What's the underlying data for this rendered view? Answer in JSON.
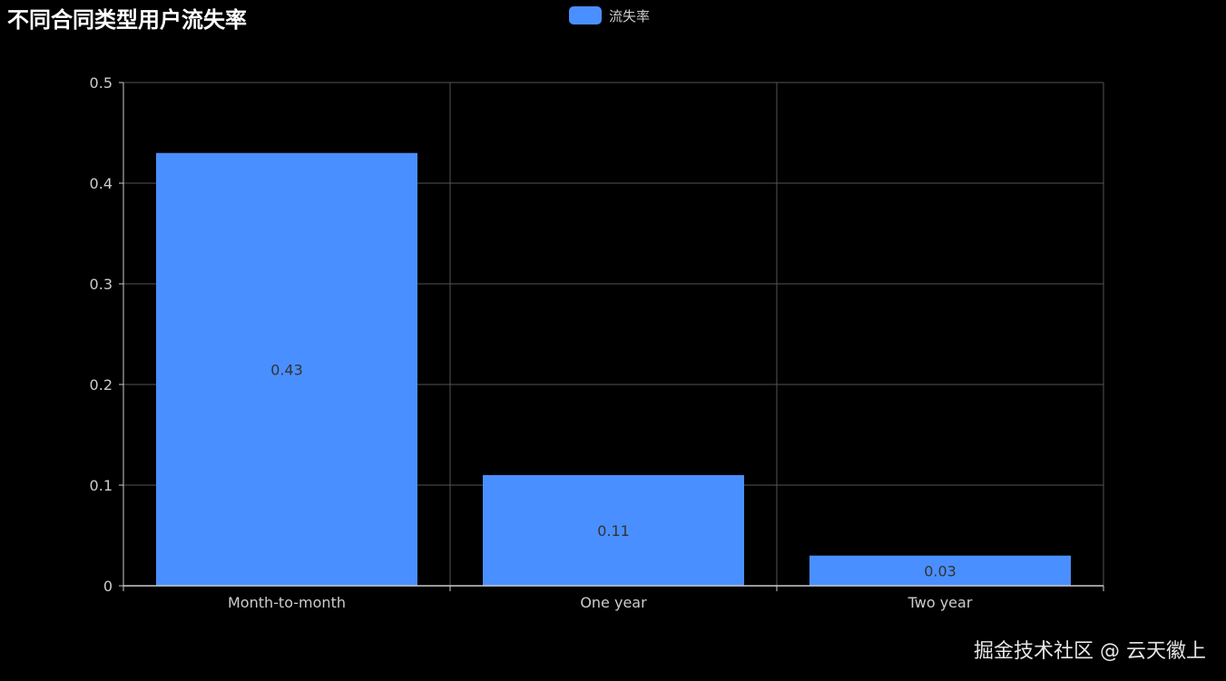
{
  "chart_data": {
    "type": "bar",
    "title": "不同合同类型用户流失率",
    "categories": [
      "Month-to-month",
      "One year",
      "Two year"
    ],
    "series": [
      {
        "name": "流失率",
        "values": [
          0.43,
          0.11,
          0.03
        ]
      }
    ],
    "data_labels": [
      "0.43",
      "0.11",
      "0.03"
    ],
    "y_ticks": [
      "0",
      "0.1",
      "0.2",
      "0.3",
      "0.4",
      "0.5"
    ],
    "ylim": [
      0,
      0.5
    ],
    "grid": true,
    "legend_position": "top-center",
    "colors": {
      "background": "#000000",
      "bar": "#4a8fff",
      "grid": "#555555",
      "axis": "#cccccc"
    }
  },
  "watermark": "掘金技术社区 @ 云天徽上"
}
